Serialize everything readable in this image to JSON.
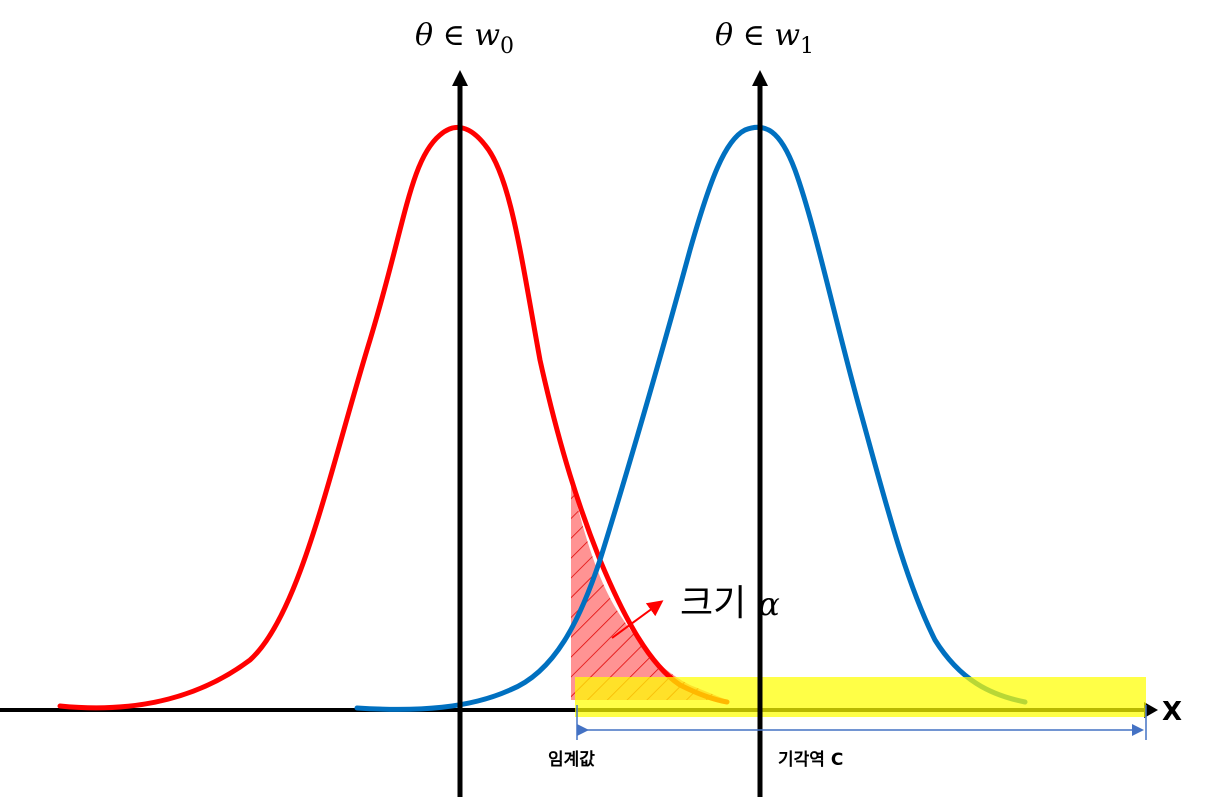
{
  "labels": {
    "h0_symbol": "θ ∈ w",
    "h0_sub": "0",
    "h1_symbol": "θ ∈ w",
    "h1_sub": "1",
    "alpha_text": "크기",
    "alpha_symbol": "α",
    "threshold": "임계값",
    "critical_region": "기각역 C",
    "x_axis": "X"
  },
  "colors": {
    "h0_curve": "#ff0000",
    "h1_curve": "#0070c0",
    "alpha_fill": "#ff8080",
    "alpha_hatch": "#e00000",
    "critical_region_fill": "#ffff00",
    "axis": "#000000",
    "dimension_arrow": "#4472c4"
  }
}
